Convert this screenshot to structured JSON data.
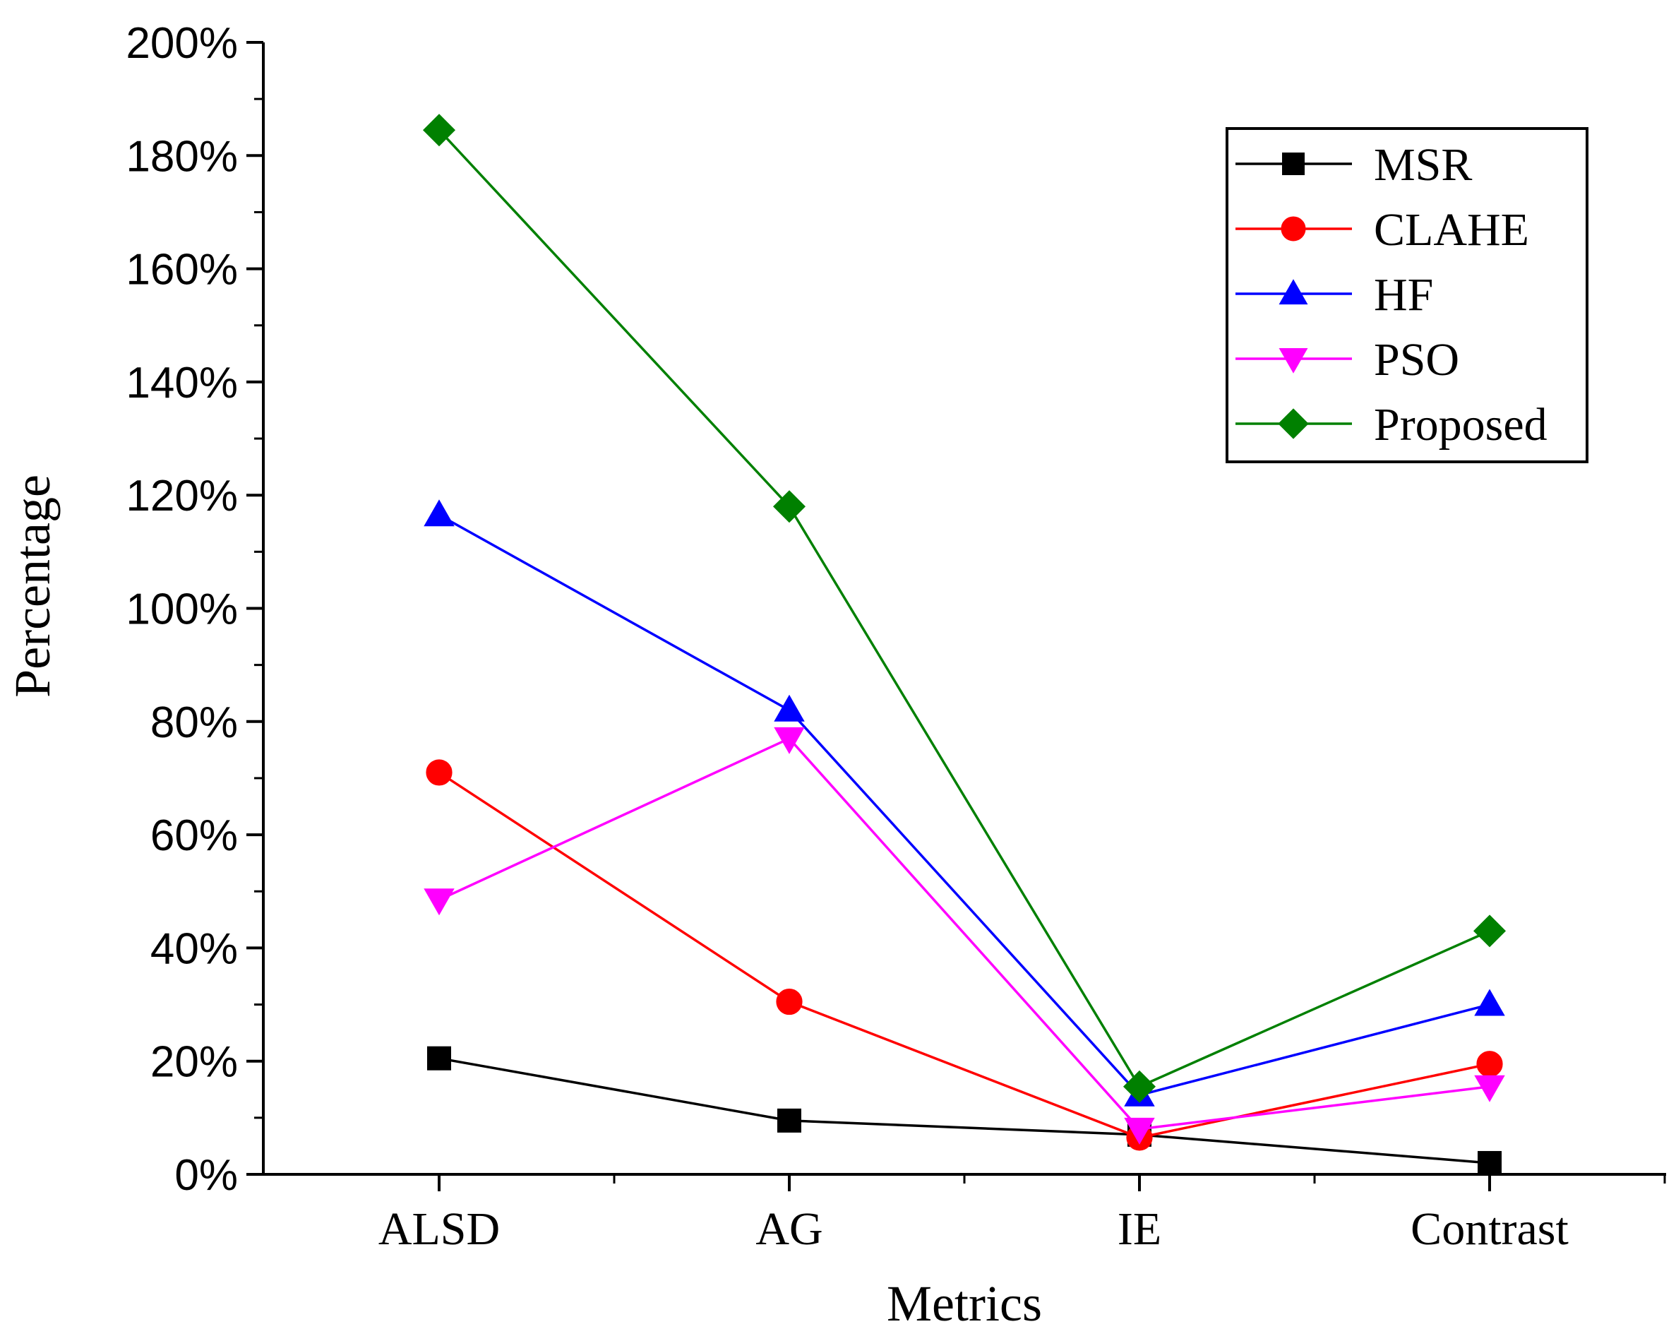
{
  "chart_data": {
    "type": "line",
    "title": "",
    "xlabel": "Metrics",
    "ylabel": "Percentage",
    "categories": [
      "ALSD",
      "AG",
      "IE",
      "Contrast"
    ],
    "ylim": [
      0,
      200
    ],
    "yticks": [
      0,
      20,
      40,
      60,
      80,
      100,
      120,
      140,
      160,
      180,
      200
    ],
    "ytick_labels": [
      "0%",
      "20%",
      "40%",
      "60%",
      "80%",
      "100%",
      "120%",
      "140%",
      "160%",
      "180%",
      "200%"
    ],
    "legend_position": "top-right",
    "grid": false,
    "series": [
      {
        "name": "MSR",
        "color": "#000000",
        "marker": "square",
        "values": [
          20.5,
          9.5,
          7,
          2
        ]
      },
      {
        "name": "CLAHE",
        "color": "#ff0000",
        "marker": "circle",
        "values": [
          71,
          30.5,
          6.5,
          19.5
        ]
      },
      {
        "name": "HF",
        "color": "#0000ff",
        "marker": "triangle-up",
        "values": [
          116.5,
          82,
          14,
          30
        ]
      },
      {
        "name": "PSO",
        "color": "#ff00ff",
        "marker": "triangle-down",
        "values": [
          48.5,
          77,
          8,
          15.5
        ]
      },
      {
        "name": "Proposed",
        "color": "#008000",
        "marker": "diamond",
        "values": [
          184.5,
          118,
          15.5,
          43
        ]
      }
    ]
  }
}
